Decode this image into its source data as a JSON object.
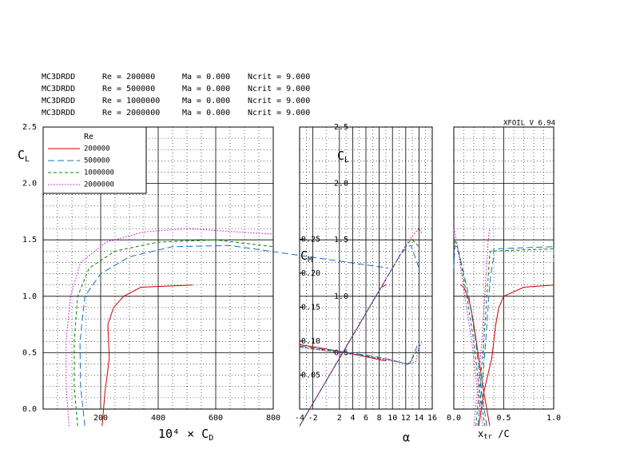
{
  "header": {
    "version": "XFOIL V 6.94",
    "runs": [
      {
        "airfoil": "MC3DRDD",
        "re": "Re = 200000",
        "ma": "Ma = 0.000",
        "ncrit": "Ncrit = 9.000",
        "color": "#cc0000"
      },
      {
        "airfoil": "MC3DRDD",
        "re": "Re = 500000",
        "ma": "Ma = 0.000",
        "ncrit": "Ncrit = 9.000",
        "color": "#1a6fc0"
      },
      {
        "airfoil": "MC3DRDD",
        "re": "Re = 1000000",
        "ma": "Ma = 0.000",
        "ncrit": "Ncrit = 9.000",
        "color": "#008000"
      },
      {
        "airfoil": "MC3DRDD",
        "re": "Re = 2000000",
        "ma": "Ma = 0.000",
        "ncrit": "Ncrit = 9.000",
        "color": "#d000d0"
      }
    ]
  },
  "chart_data": [
    {
      "type": "line",
      "xlabel": "10⁴ × C",
      "xlabel_sub": "D",
      "ylabel": "C",
      "ylabel_sub": "L",
      "legend_title": "Re",
      "legend": "upper left",
      "xlim": [
        0,
        800
      ],
      "xticks": [
        200,
        400,
        600,
        800
      ],
      "ylim": [
        0,
        2.5
      ],
      "yticks": [
        {
          "value": 0,
          "label": "0.0"
        },
        0.5,
        {
          "value": 1,
          "label": "1.0"
        },
        1.5,
        {
          "value": 2,
          "label": "2.0"
        },
        2.5
      ],
      "series": [
        {
          "name": "200000",
          "color": "#cc0000",
          "dash": "solid",
          "x": [
            205,
            215,
            230,
            225,
            245,
            280,
            340,
            520
          ],
          "values": [
            -0.15,
            0.15,
            0.45,
            0.75,
            0.9,
            1.0,
            1.08,
            1.1
          ]
        },
        {
          "name": "500000",
          "color": "#1a6fc0",
          "dash": "long-dash",
          "x": [
            145,
            130,
            128,
            145,
            200,
            300,
            450,
            650,
            1200
          ],
          "values": [
            -0.15,
            0.2,
            0.6,
            1.0,
            1.2,
            1.35,
            1.44,
            1.45,
            1.25
          ]
        },
        {
          "name": "1000000",
          "color": "#008000",
          "dash": "dash",
          "x": [
            120,
            108,
            108,
            120,
            160,
            250,
            400,
            600,
            800
          ],
          "values": [
            -0.15,
            0.2,
            0.6,
            1.0,
            1.25,
            1.4,
            1.48,
            1.5,
            1.44
          ]
        },
        {
          "name": "2000000",
          "color": "#d000d0",
          "dash": "dotted",
          "x": [
            90,
            80,
            80,
            95,
            130,
            220,
            350,
            500,
            800
          ],
          "values": [
            -0.15,
            0.2,
            0.6,
            1.0,
            1.3,
            1.48,
            1.57,
            1.6,
            1.55
          ]
        }
      ]
    },
    {
      "type": "line",
      "xlabel": "α",
      "ylabel": "C",
      "ylabel_sub": "L",
      "y2label": "C",
      "y2label_sub": "M",
      "xlim": [
        -4,
        16
      ],
      "xticks": [
        -4,
        -2,
        2,
        4,
        6,
        8,
        10,
        12,
        14,
        16
      ],
      "ylim": [
        0,
        2.5
      ],
      "yticks": [
        0.5,
        {
          "value": 1,
          "label": "1.0"
        },
        1.5,
        {
          "value": 2,
          "label": "2.0"
        },
        2.5
      ],
      "y2lim": [
        0,
        0.415
      ],
      "y2ticks": [
        0.05,
        {
          "value": 0.1,
          "label": "0.10"
        },
        0.15,
        {
          "value": 0.2,
          "label": "0.20"
        },
        0.25
      ],
      "series": [
        {
          "color": "#cc0000",
          "dash": "solid",
          "x": [
            -4,
            -1,
            2,
            5,
            6.5,
            7.5,
            8.3,
            9
          ],
          "values": [
            -0.15,
            0.15,
            0.45,
            0.75,
            0.9,
            1.0,
            1.08,
            1.1
          ]
        },
        {
          "color": "#1a6fc0",
          "dash": "long-dash",
          "x": [
            -4,
            -0.5,
            3.5,
            7.5,
            9.5,
            11,
            12.2,
            12.8,
            14
          ],
          "values": [
            -0.15,
            0.2,
            0.6,
            1.0,
            1.2,
            1.35,
            1.44,
            1.45,
            1.25
          ]
        },
        {
          "color": "#008000",
          "dash": "dash",
          "x": [
            -4,
            -0.5,
            3.5,
            7.5,
            10,
            11.5,
            12.5,
            13,
            14
          ],
          "values": [
            -0.15,
            0.2,
            0.6,
            1.0,
            1.25,
            1.4,
            1.48,
            1.5,
            1.44
          ]
        },
        {
          "color": "#d000d0",
          "dash": "dotted",
          "x": [
            -4,
            -0.5,
            3.5,
            7.5,
            10.5,
            12.3,
            13.5,
            14,
            14.5
          ],
          "values": [
            -0.15,
            0.2,
            0.6,
            1.0,
            1.3,
            1.48,
            1.57,
            1.6,
            1.55
          ]
        },
        {
          "color": "#cc0000",
          "dash": "solid",
          "axis": "y2",
          "x": [
            -4,
            -1,
            2,
            5,
            6.5,
            7.5,
            8.3,
            9
          ],
          "values": [
            0.095,
            0.09,
            0.085,
            0.079,
            0.076,
            0.074,
            0.072,
            0.071
          ]
        },
        {
          "color": "#1a6fc0",
          "dash": "long-dash",
          "axis": "y2",
          "x": [
            -4,
            -0.5,
            3.5,
            7.5,
            9.5,
            11,
            12.2,
            12.8,
            14
          ],
          "values": [
            0.093,
            0.088,
            0.083,
            0.077,
            0.073,
            0.069,
            0.066,
            0.07,
            0.1
          ]
        },
        {
          "color": "#008000",
          "dash": "dash",
          "axis": "y2",
          "x": [
            -4,
            -0.5,
            3.5,
            7.5,
            10,
            11.5,
            12.5,
            13,
            14
          ],
          "values": [
            0.092,
            0.087,
            0.082,
            0.076,
            0.072,
            0.068,
            0.066,
            0.075,
            0.09
          ]
        },
        {
          "color": "#d000d0",
          "dash": "dotted",
          "axis": "y2",
          "x": [
            -4,
            -0.5,
            3.5,
            7.5,
            10.5,
            12.3,
            13.5,
            14,
            14.5
          ],
          "values": [
            0.091,
            0.086,
            0.081,
            0.075,
            0.07,
            0.066,
            0.07,
            0.09,
            0.1
          ]
        }
      ]
    },
    {
      "type": "line",
      "xlabel": "x",
      "xlabel_sub": "tr",
      "xlabel_tail": " /C",
      "xlim": [
        0,
        1
      ],
      "xticks": [
        {
          "value": 0,
          "label": "0.0"
        },
        0.5,
        {
          "value": 1,
          "label": "1.0"
        }
      ],
      "ylim": [
        0,
        2.5
      ],
      "yticks": [
        0,
        0.5,
        1,
        1.5,
        2,
        2.5
      ],
      "series": [
        {
          "color": "#cc0000",
          "dash": "solid",
          "x": [
            0.36,
            0.3,
            0.25,
            0.2,
            0.17,
            0.14,
            0.1,
            0.07
          ],
          "values": [
            -0.15,
            0.15,
            0.45,
            0.75,
            0.9,
            1.0,
            1.08,
            1.1
          ]
        },
        {
          "color": "#cc0000",
          "dash": "solid",
          "x": [
            0.25,
            0.3,
            0.38,
            0.42,
            0.45,
            0.5,
            0.7,
            1.0
          ],
          "values": [
            -0.15,
            0.15,
            0.45,
            0.75,
            0.9,
            1.0,
            1.08,
            1.1
          ]
        },
        {
          "color": "#1a6fc0",
          "dash": "long-dash",
          "x": [
            0.33,
            0.27,
            0.22,
            0.15,
            0.1,
            0.06,
            0.03,
            0.01,
            0.0
          ],
          "values": [
            -0.15,
            0.2,
            0.6,
            1.0,
            1.2,
            1.35,
            1.44,
            1.45,
            1.25
          ]
        },
        {
          "color": "#1a6fc0",
          "dash": "long-dash",
          "x": [
            0.24,
            0.28,
            0.32,
            0.35,
            0.37,
            0.4,
            0.4,
            1.0,
            1.0
          ],
          "values": [
            -0.15,
            0.2,
            0.6,
            1.0,
            1.2,
            1.35,
            1.42,
            1.44,
            1.3
          ]
        },
        {
          "color": "#008000",
          "dash": "dash",
          "x": [
            0.31,
            0.25,
            0.2,
            0.13,
            0.08,
            0.05,
            0.02,
            0.01,
            0.0
          ],
          "values": [
            -0.15,
            0.2,
            0.6,
            1.0,
            1.25,
            1.4,
            1.48,
            1.5,
            1.44
          ]
        },
        {
          "color": "#008000",
          "dash": "dash",
          "x": [
            0.22,
            0.26,
            0.3,
            0.33,
            0.35,
            0.36,
            0.37,
            1.0
          ],
          "values": [
            -0.15,
            0.2,
            0.6,
            1.0,
            1.25,
            1.38,
            1.4,
            1.42
          ]
        },
        {
          "color": "#d000d0",
          "dash": "dotted",
          "x": [
            0.29,
            0.23,
            0.18,
            0.11,
            0.06,
            0.03,
            0.01,
            0.0,
            0.0
          ],
          "values": [
            -0.15,
            0.2,
            0.6,
            1.0,
            1.3,
            1.48,
            1.57,
            1.6,
            1.55
          ]
        },
        {
          "color": "#d000d0",
          "dash": "dotted",
          "x": [
            0.2,
            0.24,
            0.28,
            0.31,
            0.33,
            0.34,
            0.35,
            0.36
          ],
          "values": [
            -0.15,
            0.2,
            0.6,
            1.0,
            1.3,
            1.45,
            1.55,
            1.6
          ]
        }
      ]
    }
  ]
}
